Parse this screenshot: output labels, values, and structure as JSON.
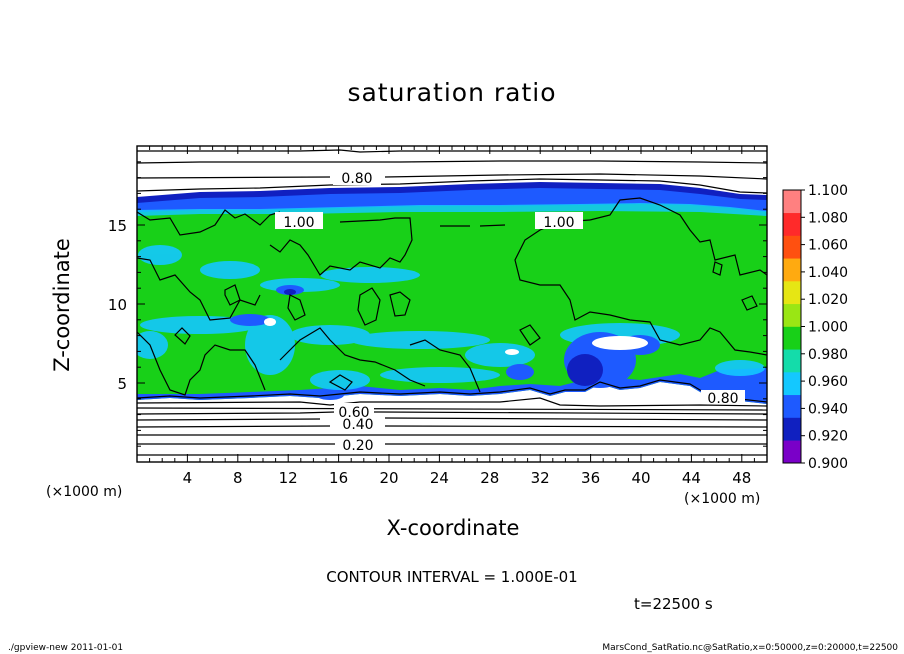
{
  "chart_data": {
    "type": "heatmap",
    "title": "saturation ratio",
    "xlabel": "X-coordinate",
    "ylabel": "Z-coordinate",
    "x_unit_label": "(×1000 m)",
    "xlim": [
      0,
      50
    ],
    "ylim": [
      0,
      20
    ],
    "x_ticks": [
      "4",
      "8",
      "12",
      "16",
      "20",
      "24",
      "28",
      "32",
      "36",
      "40",
      "44",
      "48"
    ],
    "y_ticks": [
      "5",
      "10",
      "15"
    ],
    "colorbar": {
      "labels": [
        "0.900",
        "0.920",
        "0.940",
        "0.960",
        "0.980",
        "1.000",
        "1.020",
        "1.040",
        "1.060",
        "1.080",
        "1.100"
      ],
      "colors": [
        "#7a00c8",
        "#1020c0",
        "#1e5aff",
        "#14c8ff",
        "#14dcaa",
        "#18d018",
        "#9ae614",
        "#e6e614",
        "#ffaa10",
        "#ff5010",
        "#ff2a2a",
        "#ff8080"
      ]
    },
    "contour_labels": [
      "0.80",
      "1.00",
      "1.00",
      "0.60",
      "0.40",
      "0.20",
      "0.80"
    ],
    "contour_interval": "CONTOUR INTERVAL = 1.000E-01",
    "time": "t=22500 s"
  },
  "footer": {
    "left": "./gpview-new   2011-01-01",
    "right": "MarsCond_SatRatio.nc@SatRatio,x=0:50000,z=0:20000,t=22500"
  }
}
